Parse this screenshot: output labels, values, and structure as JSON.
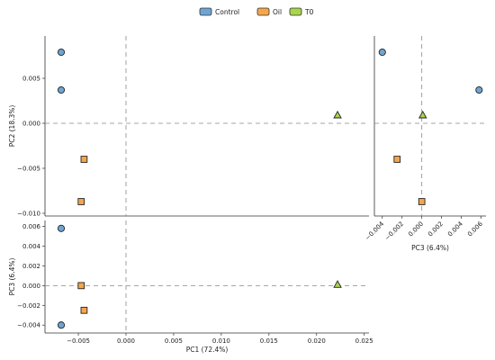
{
  "chart_data": [
    {
      "type": "scatter",
      "panel": "pc1-vs-pc2",
      "xlabel": "",
      "ylabel": "PC2 (18.3%)",
      "xlim": [
        -0.0085,
        0.0255
      ],
      "ylim": [
        -0.0103,
        0.0097
      ],
      "xticks": [],
      "yticks": [
        0.005,
        0.0,
        -0.005,
        -0.01
      ],
      "ytick_labels": [
        "0.005",
        "0.000",
        "−0.005",
        "−0.010"
      ],
      "series": [
        {
          "name": "Control",
          "points": [
            [
              -0.0068,
              0.0079
            ],
            [
              -0.0068,
              0.0037
            ]
          ]
        },
        {
          "name": "Oil",
          "points": [
            [
              -0.0044,
              -0.004
            ],
            [
              -0.0047,
              -0.0087
            ]
          ]
        },
        {
          "name": "T0",
          "points": [
            [
              0.0222,
              0.0009
            ]
          ]
        }
      ]
    },
    {
      "type": "scatter",
      "panel": "pc3-vs-pc2",
      "xlabel": "PC3 (6.4%)",
      "ylabel": "",
      "xlim": [
        -0.0048,
        0.0065
      ],
      "ylim": [
        -0.0103,
        0.0097
      ],
      "xticks": [
        -0.004,
        -0.002,
        0.0,
        0.002,
        0.004,
        0.006
      ],
      "xtick_labels": [
        "−0.004",
        "−0.002",
        "0.000",
        "0.002",
        "0.004",
        "0.006"
      ],
      "series": [
        {
          "name": "Control",
          "points": [
            [
              -0.004,
              0.0079
            ],
            [
              0.0058,
              0.0037
            ]
          ]
        },
        {
          "name": "Oil",
          "points": [
            [
              -0.0025,
              -0.004
            ],
            [
              0.0,
              -0.0087
            ]
          ]
        },
        {
          "name": "T0",
          "points": [
            [
              0.0001,
              0.0009
            ]
          ]
        }
      ]
    },
    {
      "type": "scatter",
      "panel": "pc1-vs-pc3",
      "xlabel": "PC1 (72.4%)",
      "ylabel": "PC3 (6.4%)",
      "xlim": [
        -0.0085,
        0.0255
      ],
      "ylim": [
        -0.0048,
        0.0066
      ],
      "xticks": [
        -0.005,
        0.0,
        0.005,
        0.01,
        0.015,
        0.02,
        0.025
      ],
      "xtick_labels": [
        "−0.005",
        "0.000",
        "0.005",
        "0.010",
        "0.015",
        "0.020",
        "0.025"
      ],
      "yticks": [
        0.006,
        0.004,
        0.002,
        0.0,
        -0.002,
        -0.004
      ],
      "ytick_labels": [
        "0.006",
        "0.004",
        "0.002",
        "0.000",
        "−0.002",
        "−0.004"
      ],
      "series": [
        {
          "name": "Control",
          "points": [
            [
              -0.0068,
              0.0058
            ],
            [
              -0.0068,
              -0.004
            ]
          ]
        },
        {
          "name": "Oil",
          "points": [
            [
              -0.0047,
              0.0
            ],
            [
              -0.0044,
              -0.0025
            ]
          ]
        },
        {
          "name": "T0",
          "points": [
            [
              0.0222,
              0.0001
            ]
          ]
        }
      ]
    }
  ],
  "legend": {
    "position": "top-center",
    "entries": [
      {
        "label": "Control",
        "color": "#6ea5d3",
        "marker": "circle"
      },
      {
        "label": "Oil",
        "color": "#f5a64a",
        "marker": "square"
      },
      {
        "label": "T0",
        "color": "#a8d54a",
        "marker": "triangle"
      }
    ]
  },
  "zero_lines": "dashed",
  "grid": false
}
